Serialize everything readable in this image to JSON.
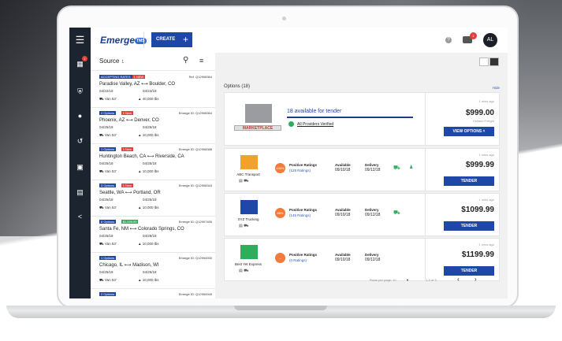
{
  "app": {
    "logo": "Emerge",
    "logo_badge": "TMS",
    "create_label": "CREATE",
    "avatar": "AL",
    "chat_badge": "1"
  },
  "sidebar": {
    "badge": "1"
  },
  "source": {
    "title": "Source",
    "count": "1"
  },
  "loads": [
    {
      "tag1": "ACCEPTING RATES",
      "tag2": "1 NEW",
      "ref": "Ref. Q12908364",
      "origin": "Paradise Valley, AZ",
      "dest": "Boulder, CO",
      "date1": "04/22/18",
      "date2": "04/24/18",
      "equip": "Van 53'",
      "weight": "40,000 lbs"
    },
    {
      "tag1": "2 Options",
      "tag2": "1 New",
      "ref": "Emerge ID: Q12908364",
      "origin": "Phoenix, AZ",
      "dest": "Denver, CO",
      "date1": "04/25/18",
      "date2": "04/26/18",
      "equip": "Van 53'",
      "weight": "10,000 lbs"
    },
    {
      "tag1": "1 Options",
      "tag2": "1 New",
      "ref": "Emerge ID: Q12908388",
      "origin": "Huntington Beach, CA",
      "dest": "Riverside, CA",
      "date1": "04/25/18",
      "date2": "04/25/18",
      "equip": "Van 53'",
      "weight": "10,000 lbs"
    },
    {
      "tag1": "3 Options",
      "tag2": "1 New",
      "ref": "Emerge ID: Q12908343",
      "origin": "Seattle, WA",
      "dest": "Portland, OR",
      "date1": "04/25/18",
      "date2": "04/25/18",
      "equip": "Van 53'",
      "weight": "10,000 lbs"
    },
    {
      "tag1": "6 Options",
      "tag2": "$1,099.99",
      "ref": "Emerge ID: Q12907455",
      "origin": "Santa Fe, NM",
      "dest": "Colorado Springs, CO",
      "date1": "04/25/18",
      "date2": "04/28/18",
      "equip": "Van 53'",
      "weight": "10,000 lbs"
    },
    {
      "tag1": "1 Options",
      "tag2": "",
      "ref": "Emerge ID: Q12994930",
      "origin": "Chicago, IL",
      "dest": "Madison, WI",
      "date1": "04/25/18",
      "date2": "04/25/18",
      "equip": "Van 53'",
      "weight": "10,000 lbs"
    },
    {
      "tag1": "2 Options",
      "tag2": "",
      "ref": "Emerge ID: Q12994945",
      "origin": "",
      "dest": "",
      "date1": "",
      "date2": "",
      "equip": "",
      "weight": ""
    }
  ],
  "options": {
    "label": "Options (18)",
    "hide": "Hide",
    "marketplace": {
      "name": "MARKETPLACE",
      "available": "18 available for tender",
      "verified": "All Providers Verified",
      "mins": "1 mins ago",
      "price": "$999.00",
      "provider": "Holland Freight",
      "button": "VIEW OPTIONS"
    },
    "carriers": [
      {
        "name": "ABC Transport",
        "rating": "100%",
        "ratings_label": "Positive Ratings",
        "ratings_count": "(128 Ratings)",
        "available_label": "Available",
        "available": "09/10/18",
        "delivery_label": "Delivery",
        "delivery": "09/12/18",
        "mins": "1 mins ago",
        "price": "$999.99",
        "button": "TENDER"
      },
      {
        "name": "XYZ Trucking",
        "rating": "85%",
        "ratings_label": "Positive Ratings",
        "ratings_count": "(145 Ratings)",
        "available_label": "Available",
        "available": "09/10/18",
        "delivery_label": "Delivery",
        "delivery": "09/12/18",
        "mins": "1 mins ago",
        "price": "$1099.99",
        "button": "TENDER"
      },
      {
        "name": "Best Yet Express",
        "rating": "–",
        "ratings_label": "Positive Ratings",
        "ratings_count": "(0 Ratings)",
        "available_label": "Available",
        "available": "09/10/18",
        "delivery_label": "Delivery",
        "delivery": "09/12/18",
        "mins": "1 mins ago",
        "price": "$1199.99",
        "button": "TENDER"
      }
    ],
    "pager": {
      "rows_label": "Rows per page: 10",
      "range": "1-3 of 3"
    }
  }
}
